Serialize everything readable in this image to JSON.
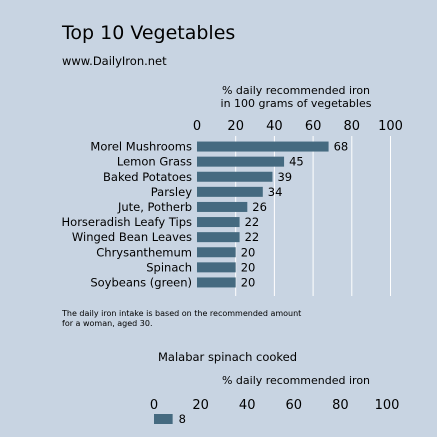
{
  "header": {
    "title": "Top 10 Vegetables",
    "source": "www.DailyIron.net"
  },
  "footnote": "The daily iron intake is based on the recommended amount for a woman, aged 30.",
  "colors": {
    "background": "#c8d4e2",
    "bar": "#456a80",
    "gridline": "#ffffff"
  },
  "chart_data": [
    {
      "type": "bar",
      "orientation": "horizontal",
      "title": "",
      "xlabel": "% daily recommended iron in 100 grams of vegetables",
      "xlabel_lines": [
        "% daily recommended iron",
        "in 100 grams of vegetables"
      ],
      "xlim": [
        0,
        100
      ],
      "xticks": [
        0,
        20,
        40,
        60,
        80,
        100
      ],
      "grid": true,
      "data_labels": true,
      "categories": [
        "Morel Mushrooms",
        "Lemon Grass",
        "Baked Potatoes",
        "Parsley",
        "Jute, Potherb",
        "Horseradish Leafy Tips",
        "Winged Bean Leaves",
        "Chrysanthemum",
        "Spinach",
        "Soybeans (green)"
      ],
      "values": [
        68,
        45,
        39,
        34,
        26,
        22,
        22,
        20,
        20,
        20
      ]
    },
    {
      "type": "bar",
      "orientation": "horizontal",
      "title": "Malabar spinach cooked",
      "xlabel": "% daily recommended iron",
      "xlim": [
        0,
        100
      ],
      "xticks": [
        0,
        20,
        40,
        60,
        80,
        100
      ],
      "grid": false,
      "data_labels": true,
      "categories": [
        ""
      ],
      "values": [
        8
      ]
    }
  ]
}
